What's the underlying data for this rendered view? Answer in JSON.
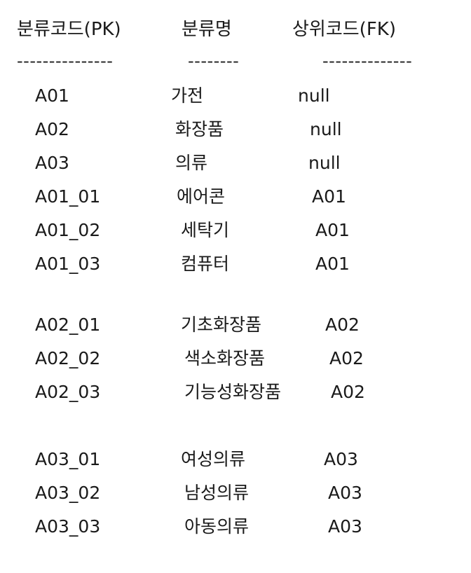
{
  "headers": [
    "분류코드(PK)",
    "분류명",
    "상위코드(FK)"
  ],
  "separators": [
    "---------------",
    "--------",
    "--------------"
  ],
  "rows": [
    [
      "A01",
      "가전",
      "null"
    ],
    [
      "A02",
      "화장품",
      "null"
    ],
    [
      "A03",
      "의류",
      "null"
    ],
    [
      "A01_01",
      "에어콘",
      "A01"
    ],
    [
      "A01_02",
      "세탁기",
      "A01"
    ],
    [
      "A01_03",
      "컴퓨터",
      "A01"
    ],
    [
      "A02_01",
      "기초화장품",
      "A02"
    ],
    [
      "A02_02",
      "색소화장품",
      "A02"
    ],
    [
      "A02_03",
      "기능성화장품",
      "A02"
    ],
    [
      "A03_01",
      "여성의류",
      "A03"
    ],
    [
      "A03_02",
      "남성의류",
      "A03"
    ],
    [
      "A03_03",
      "아동의류",
      "A03"
    ]
  ]
}
